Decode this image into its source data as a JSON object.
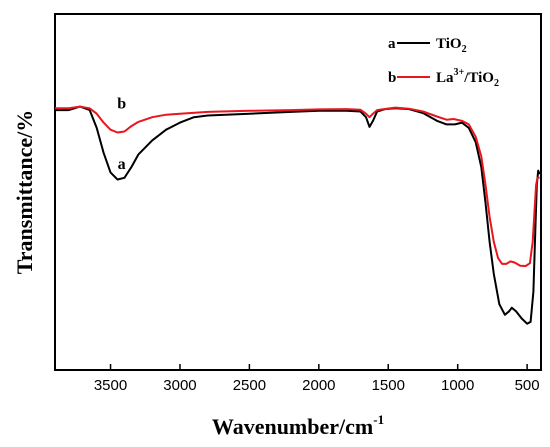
{
  "chart_data": {
    "type": "line",
    "xlabel": "Wavenumber/cm",
    "xlabel_sup": "-1",
    "ylabel": "Transmittance/%",
    "xlim": [
      3900,
      400
    ],
    "x_reversed": true,
    "x_ticks": [
      3500,
      3000,
      2500,
      2000,
      1500,
      1000,
      500
    ],
    "x_tick_labels": [
      "3500",
      "3000",
      "2500",
      "2000",
      "1500",
      "1000",
      "500"
    ],
    "y_ticks_shown": false,
    "grid": false,
    "legend_position": "top-right",
    "legend": [
      {
        "marker": "a",
        "base": "TiO",
        "sub": "2"
      },
      {
        "marker": "b",
        "base": "La",
        "sup": "3+",
        "mid": "/TiO",
        "sub": "2"
      }
    ],
    "curve_labels": [
      {
        "text": "a",
        "x": 3420,
        "y": 0.565
      },
      {
        "text": "b",
        "x": 3420,
        "y": 0.735
      }
    ],
    "series": [
      {
        "name": "TiO2",
        "label": "a",
        "color": "#000000",
        "points": [
          [
            3900,
            0.73
          ],
          [
            3800,
            0.73
          ],
          [
            3720,
            0.74
          ],
          [
            3650,
            0.73
          ],
          [
            3600,
            0.68
          ],
          [
            3550,
            0.61
          ],
          [
            3500,
            0.555
          ],
          [
            3450,
            0.535
          ],
          [
            3400,
            0.54
          ],
          [
            3350,
            0.57
          ],
          [
            3300,
            0.605
          ],
          [
            3200,
            0.645
          ],
          [
            3100,
            0.675
          ],
          [
            3000,
            0.695
          ],
          [
            2900,
            0.71
          ],
          [
            2800,
            0.715
          ],
          [
            2500,
            0.72
          ],
          [
            2200,
            0.725
          ],
          [
            2000,
            0.728
          ],
          [
            1800,
            0.728
          ],
          [
            1700,
            0.726
          ],
          [
            1660,
            0.71
          ],
          [
            1635,
            0.683
          ],
          [
            1610,
            0.7
          ],
          [
            1580,
            0.726
          ],
          [
            1520,
            0.733
          ],
          [
            1450,
            0.735
          ],
          [
            1350,
            0.733
          ],
          [
            1250,
            0.722
          ],
          [
            1150,
            0.7
          ],
          [
            1080,
            0.69
          ],
          [
            1020,
            0.69
          ],
          [
            970,
            0.695
          ],
          [
            920,
            0.68
          ],
          [
            870,
            0.64
          ],
          [
            830,
            0.57
          ],
          [
            800,
            0.47
          ],
          [
            770,
            0.36
          ],
          [
            740,
            0.27
          ],
          [
            700,
            0.185
          ],
          [
            660,
            0.155
          ],
          [
            630,
            0.165
          ],
          [
            610,
            0.175
          ],
          [
            580,
            0.165
          ],
          [
            540,
            0.145
          ],
          [
            500,
            0.13
          ],
          [
            475,
            0.135
          ],
          [
            455,
            0.22
          ],
          [
            440,
            0.4
          ],
          [
            430,
            0.52
          ],
          [
            420,
            0.56
          ],
          [
            410,
            0.55
          ]
        ]
      },
      {
        "name": "La3+/TiO2",
        "label": "b",
        "color": "#e8161e",
        "points": [
          [
            3900,
            0.735
          ],
          [
            3800,
            0.735
          ],
          [
            3720,
            0.74
          ],
          [
            3650,
            0.735
          ],
          [
            3600,
            0.72
          ],
          [
            3550,
            0.695
          ],
          [
            3500,
            0.675
          ],
          [
            3450,
            0.667
          ],
          [
            3400,
            0.67
          ],
          [
            3350,
            0.685
          ],
          [
            3300,
            0.697
          ],
          [
            3200,
            0.71
          ],
          [
            3100,
            0.717
          ],
          [
            3000,
            0.72
          ],
          [
            2800,
            0.725
          ],
          [
            2500,
            0.728
          ],
          [
            2200,
            0.73
          ],
          [
            2000,
            0.732
          ],
          [
            1800,
            0.733
          ],
          [
            1700,
            0.731
          ],
          [
            1660,
            0.72
          ],
          [
            1635,
            0.71
          ],
          [
            1610,
            0.72
          ],
          [
            1580,
            0.73
          ],
          [
            1450,
            0.737
          ],
          [
            1350,
            0.734
          ],
          [
            1250,
            0.726
          ],
          [
            1150,
            0.712
          ],
          [
            1080,
            0.703
          ],
          [
            1030,
            0.705
          ],
          [
            970,
            0.7
          ],
          [
            920,
            0.69
          ],
          [
            870,
            0.655
          ],
          [
            830,
            0.6
          ],
          [
            800,
            0.52
          ],
          [
            770,
            0.43
          ],
          [
            740,
            0.36
          ],
          [
            710,
            0.315
          ],
          [
            680,
            0.298
          ],
          [
            650,
            0.298
          ],
          [
            620,
            0.305
          ],
          [
            590,
            0.302
          ],
          [
            550,
            0.293
          ],
          [
            510,
            0.292
          ],
          [
            480,
            0.3
          ],
          [
            460,
            0.36
          ],
          [
            445,
            0.46
          ],
          [
            435,
            0.52
          ],
          [
            425,
            0.54
          ],
          [
            410,
            0.54
          ]
        ]
      }
    ]
  }
}
